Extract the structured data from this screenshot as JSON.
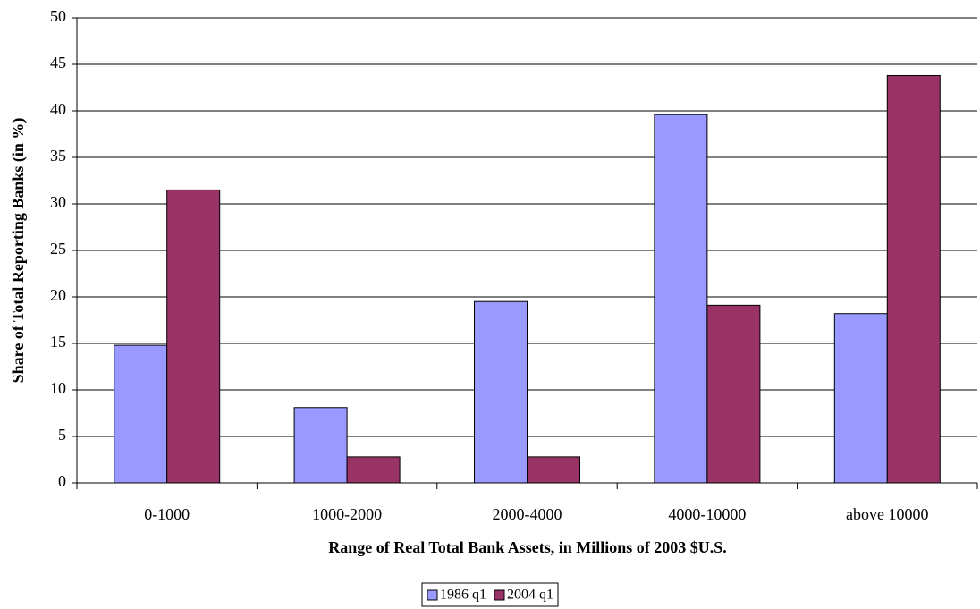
{
  "chart_data": {
    "type": "bar",
    "y_label": "Share of Total Reporting Banks (in %)",
    "x_label": "Range of Real Total Bank Assets, in Millions of 2003 $U.S.",
    "categories": [
      "0-1000",
      "1000-2000",
      "2000-4000",
      "4000-10000",
      "above 10000"
    ],
    "series": [
      {
        "name": "1986 q1",
        "color": "#9999ff",
        "values": [
          14.8,
          8.1,
          19.5,
          39.6,
          18.2
        ]
      },
      {
        "name": "2004 q1",
        "color": "#993366",
        "values": [
          31.5,
          2.8,
          2.8,
          19.1,
          43.8
        ]
      }
    ],
    "ylim": [
      0,
      50
    ],
    "yticks": [
      0,
      5,
      10,
      15,
      20,
      25,
      30,
      35,
      40,
      45,
      50
    ],
    "grid": true
  }
}
